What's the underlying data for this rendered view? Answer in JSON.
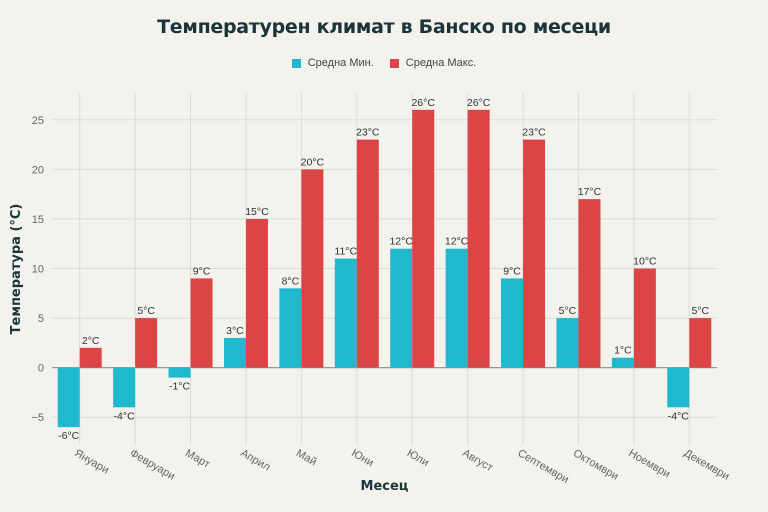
{
  "chart_data": {
    "type": "bar",
    "title": "Температурен климат в Банско по месеци",
    "xlabel": "Месец",
    "ylabel": "Температура (°C)",
    "categories": [
      "Януари",
      "Февруари",
      "Март",
      "Април",
      "Май",
      "Юни",
      "Юли",
      "Август",
      "Септември",
      "Октомври",
      "Ноември",
      "Декември"
    ],
    "series": [
      {
        "name": "Средна Мин.",
        "color": "#1fb8cd",
        "values": [
          -6,
          -4,
          -1,
          3,
          8,
          11,
          12,
          12,
          9,
          5,
          1,
          -4
        ]
      },
      {
        "name": "Средна Макс.",
        "color": "#db4545",
        "values": [
          2,
          5,
          9,
          15,
          20,
          23,
          26,
          26,
          23,
          17,
          10,
          5
        ]
      }
    ],
    "data_label_suffix": "°C",
    "ylim": [
      -7.8,
      27.7
    ],
    "yticks": [
      -5,
      0,
      5,
      10,
      15,
      20,
      25
    ],
    "grid": true,
    "legend": "top-center"
  }
}
